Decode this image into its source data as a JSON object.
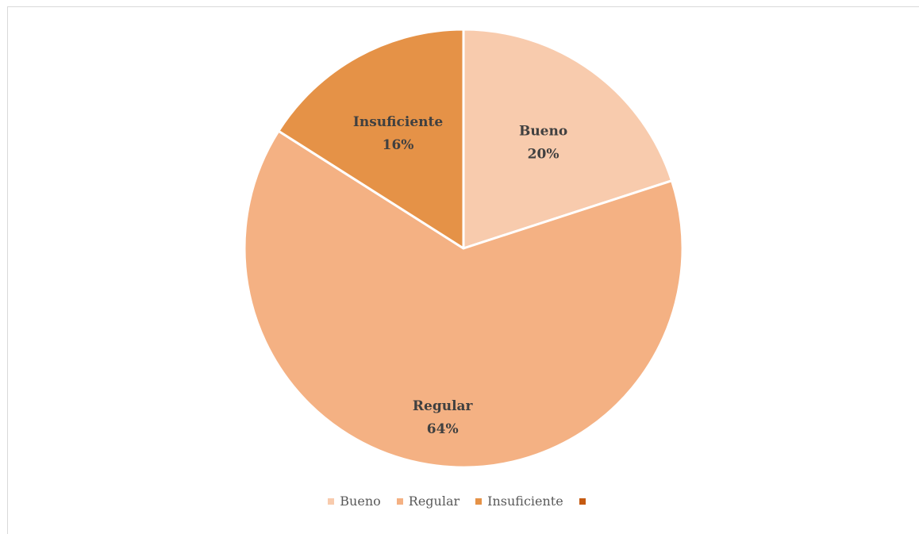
{
  "chart_data": {
    "type": "pie",
    "categories": [
      "Bueno",
      "Regular",
      "Insuficiente",
      ""
    ],
    "values": [
      20,
      64,
      16,
      0
    ],
    "labels": [
      "20%",
      "64%",
      "16%",
      ""
    ],
    "colors": [
      "#F8CBAD",
      "#F4B183",
      "#E59247",
      "#C55A11"
    ],
    "legend_position": "bottom",
    "start_angle_deg": 0,
    "direction": "clockwise"
  },
  "legend": {
    "items": [
      {
        "label": "Bueno",
        "color": "#F8CBAD"
      },
      {
        "label": "Regular",
        "color": "#F4B183"
      },
      {
        "label": "Insuficiente",
        "color": "#E59247"
      },
      {
        "label": "",
        "color": "#C55A11"
      }
    ]
  }
}
